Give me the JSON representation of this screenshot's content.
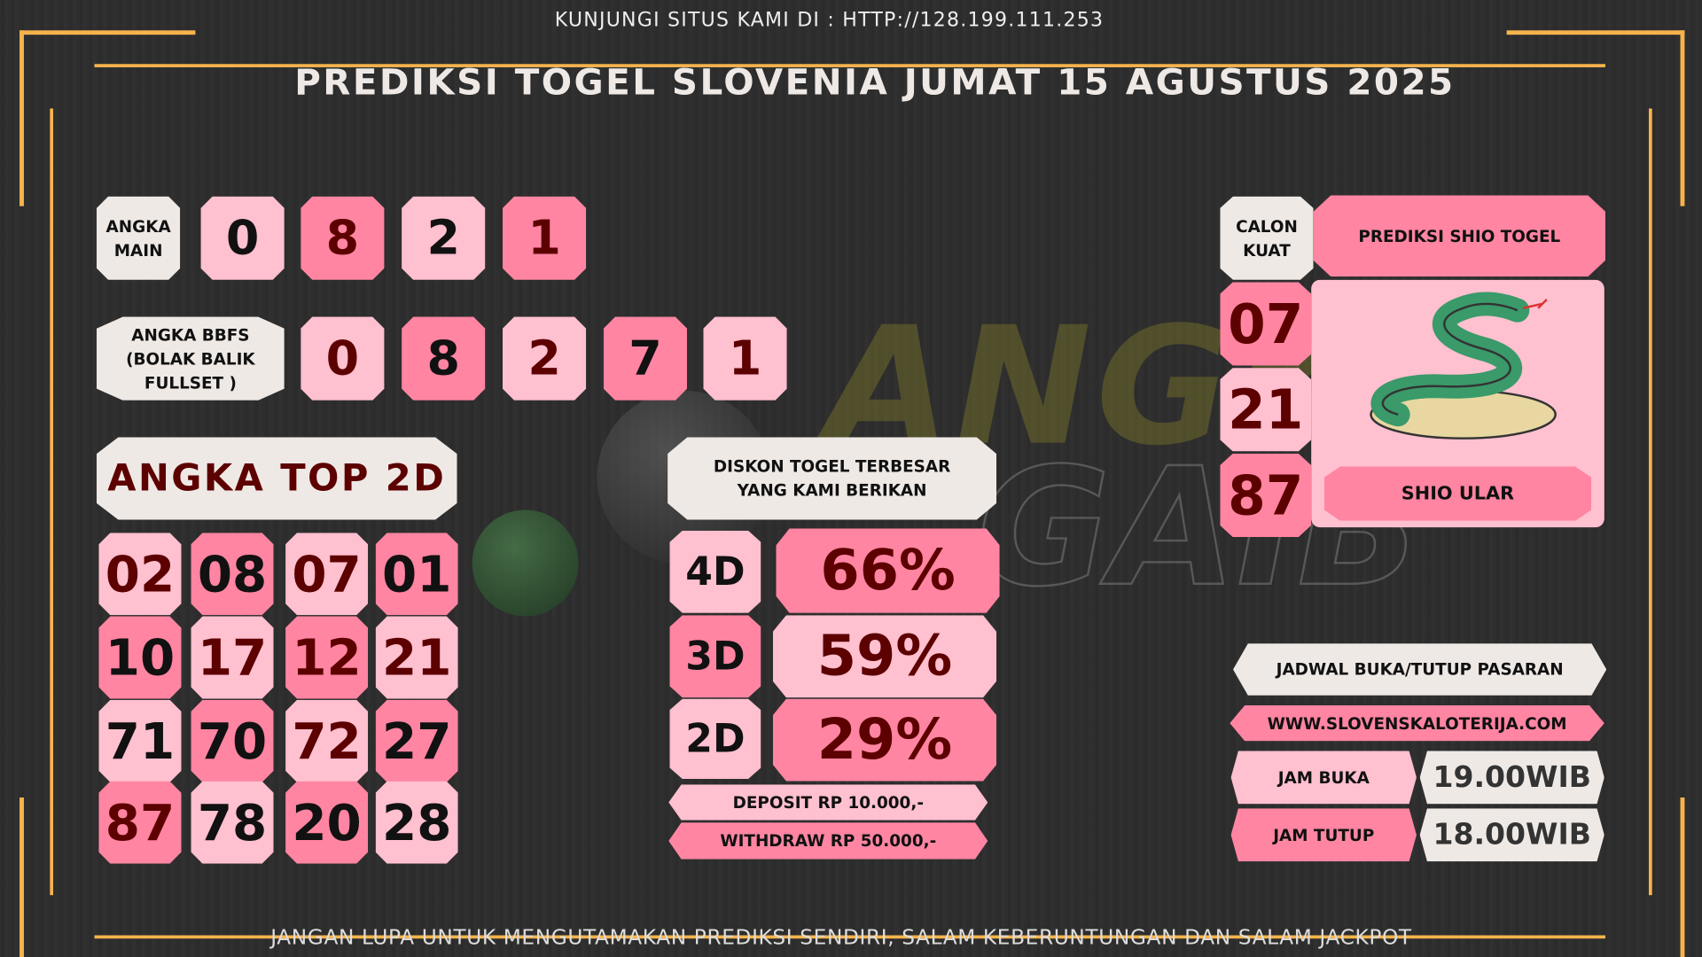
{
  "header": {
    "visit": "KUNJUNGI SITUS KAMI DI : HTTP://128.199.111.253",
    "title": "PREDIKSI TOGEL SLOVENIA JUMAT 15 AGUSTUS 2025"
  },
  "watermark_logo": "ANGKA GAIB",
  "colors": {
    "light_pink": "#ffc0d0",
    "hot_pink": "#ff85a2",
    "off_white": "#efe9e6",
    "dark_red": "#5c0000",
    "frame": "#f7b44c",
    "background": "#2e2e2e"
  },
  "angka_main": {
    "label_1": "ANGKA",
    "label_2": "MAIN",
    "digits": [
      "0",
      "8",
      "2",
      "1"
    ]
  },
  "bbfs": {
    "label_1": "ANGKA BBFS",
    "label_2": "(BOLAK BALIK",
    "label_3": "FULLSET )",
    "digits": [
      "0",
      "8",
      "2",
      "7",
      "1"
    ]
  },
  "top2d": {
    "title": "ANGKA TOP 2D",
    "numbers": [
      "02",
      "08",
      "07",
      "01",
      "10",
      "17",
      "12",
      "21",
      "71",
      "70",
      "72",
      "27",
      "87",
      "78",
      "20",
      "28"
    ]
  },
  "diskon": {
    "title_1": "DISKON TOGEL TERBESAR",
    "title_2": "YANG KAMI BERIKAN",
    "rows": [
      {
        "type": "4D",
        "value": "66%"
      },
      {
        "type": "3D",
        "value": "59%"
      },
      {
        "type": "2D",
        "value": "29%"
      }
    ],
    "deposit": "DEPOSIT RP 10.000,-",
    "withdraw": "WITHDRAW RP 50.000,-"
  },
  "shio": {
    "calon_1": "CALON",
    "calon_2": "KUAT",
    "header": "PREDIKSI SHIO TOGEL",
    "numbers": [
      "07",
      "21",
      "87"
    ],
    "name": "SHIO ULAR",
    "icon": "snake-icon"
  },
  "jadwal": {
    "title": "JADWAL BUKA/TUTUP PASARAN",
    "site": "WWW.SLOVENSKALOTERIJA.COM",
    "buka_label": "JAM BUKA",
    "buka_time": "19.00WIB",
    "tutup_label": "JAM TUTUP",
    "tutup_time": "18.00WIB"
  },
  "footer": {
    "text": "JANGAN LUPA UNTUK MENGUTAMAKAN PREDIKSI SENDIRI, SALAM KEBERUNTUNGAN DAN SALAM JACKPOT"
  }
}
